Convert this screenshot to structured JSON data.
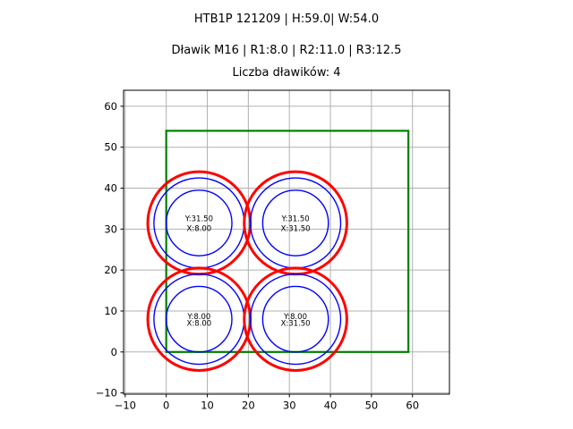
{
  "figure": {
    "suptitle": "HTB1P 121209 | H:59.0| W:54.0",
    "axes_title_line1": "Dławik M16 | R1:8.0 | R2:11.0 | R3:12.5",
    "axes_title_line2": "Liczba dławików: 4"
  },
  "chart_data": {
    "type": "scatter",
    "title": "HTB1P 121209 | H:59.0| W:54.0",
    "subtitle_lines": [
      "Dławik M16 | R1:8.0 | R2:11.0 | R3:12.5",
      "Liczba dławików: 4"
    ],
    "xlabel": "",
    "ylabel": "",
    "xlim": [
      -10.4,
      69.0
    ],
    "ylim": [
      -10.3,
      63.9
    ],
    "xticks": [
      -10,
      0,
      10,
      20,
      30,
      40,
      50,
      60
    ],
    "yticks": [
      -10,
      0,
      10,
      20,
      30,
      40,
      50,
      60
    ],
    "grid": true,
    "legend": false,
    "colors": {
      "grid": "#b0b0b0",
      "frame": "#000000",
      "enclosure": "#008000",
      "outer_ring": "#ff0000",
      "inner_rings": "#0000ff",
      "text": "#000000"
    },
    "enclosure": {
      "x": 0,
      "y": 0,
      "width": 59.0,
      "height": 54.0,
      "line_width": 2.2
    },
    "gland_parameters": {
      "name": "Dławik M16",
      "r1": 8.0,
      "r2": 11.0,
      "r3": 12.5,
      "count": 4,
      "plate_h": 59.0,
      "plate_w": 54.0
    },
    "rings": [
      {
        "radius": 12.5,
        "color": "#ff0000",
        "line_width": 3
      },
      {
        "radius": 11.0,
        "color": "#0000ff",
        "line_width": 1.4
      },
      {
        "radius": 8.0,
        "color": "#0000ff",
        "line_width": 1.4
      }
    ],
    "glands": [
      {
        "x": 8.0,
        "y": 31.5,
        "label_line1": "Y:31.50",
        "label_line2": "X:8.00"
      },
      {
        "x": 31.5,
        "y": 31.5,
        "label_line1": "Y:31.50",
        "label_line2": "X:31.50"
      },
      {
        "x": 8.0,
        "y": 8.0,
        "label_line1": "Y:8.00",
        "label_line2": "X:8.00"
      },
      {
        "x": 31.5,
        "y": 8.0,
        "label_line1": "Y:8.00",
        "label_line2": "X:31.50"
      }
    ]
  }
}
